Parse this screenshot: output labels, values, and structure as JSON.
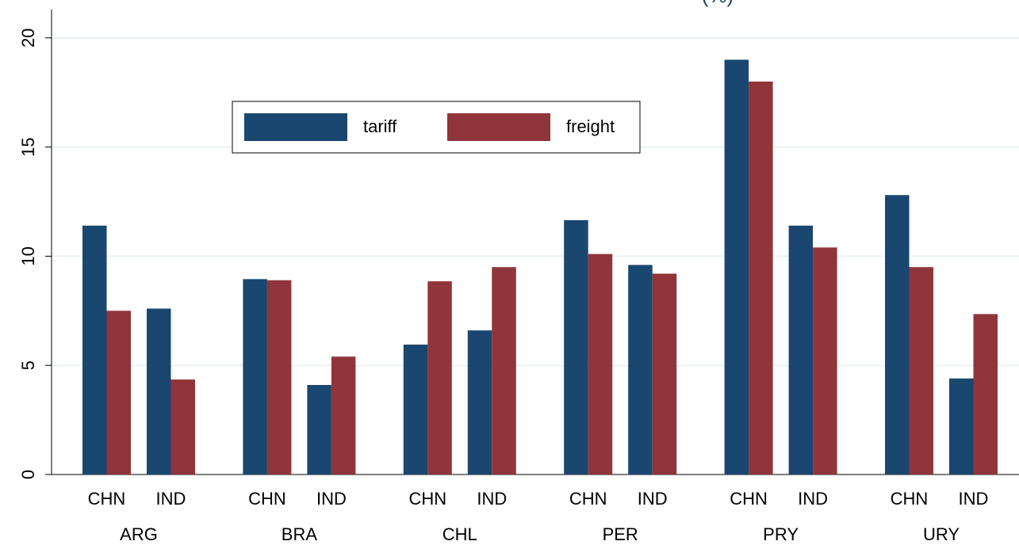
{
  "chart_data": {
    "type": "bar",
    "title": "(%)",
    "groups": [
      "ARG",
      "BRA",
      "CHL",
      "PER",
      "PRY",
      "URY"
    ],
    "categories": [
      "CHN",
      "IND",
      "CHN",
      "IND",
      "CHN",
      "IND",
      "CHN",
      "IND",
      "CHN",
      "IND",
      "CHN",
      "IND"
    ],
    "series": [
      {
        "name": "tariff",
        "color": "#1a476f",
        "values": [
          11.4,
          7.6,
          8.95,
          4.1,
          5.95,
          6.6,
          11.65,
          9.6,
          19.0,
          11.4,
          12.8,
          4.4
        ]
      },
      {
        "name": "freight",
        "color": "#90353b",
        "values": [
          7.5,
          4.35,
          8.9,
          5.4,
          8.85,
          9.5,
          10.1,
          9.2,
          18.0,
          10.4,
          9.5,
          7.35
        ]
      }
    ],
    "ylim": [
      0,
      21.3
    ],
    "yticks": [
      0,
      5,
      10,
      15,
      20
    ],
    "grid": true
  }
}
